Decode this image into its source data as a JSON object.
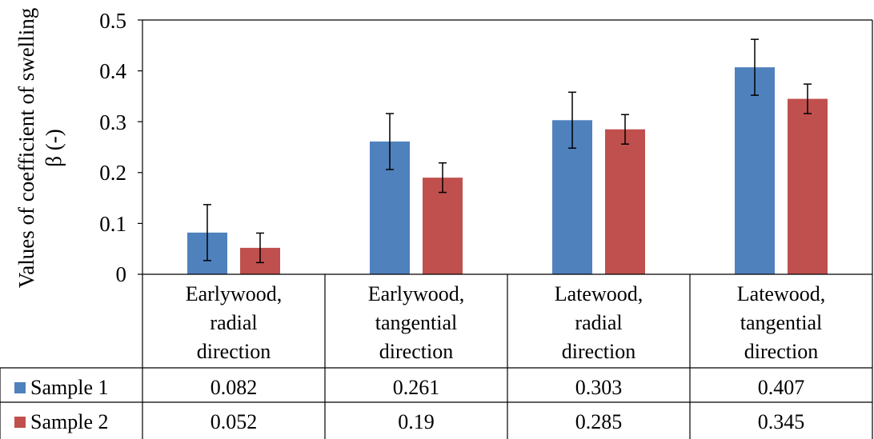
{
  "chart_data": {
    "type": "bar",
    "ylabel_line1": "Values of coefficient of swelling",
    "ylabel_line2": "β (-)",
    "ylim": [
      0,
      0.5
    ],
    "yticks": [
      "0",
      "0.1",
      "0.2",
      "0.3",
      "0.4",
      "0.5"
    ],
    "ytick_values": [
      0,
      0.1,
      0.2,
      0.3,
      0.4,
      0.5
    ],
    "categories": [
      {
        "line1": "Earlywood,",
        "line2": "radial",
        "line3": "direction"
      },
      {
        "line1": "Earlywood,",
        "line2": "tangential",
        "line3": "direction"
      },
      {
        "line1": "Latewood,",
        "line2": "radial",
        "line3": "direction"
      },
      {
        "line1": "Latewood,",
        "line2": "tangential",
        "line3": "direction"
      }
    ],
    "series": [
      {
        "name": "Sample 1",
        "color": "#4f81bd",
        "values": [
          0.082,
          0.261,
          0.303,
          0.407
        ],
        "labels": [
          "0.082",
          "0.261",
          "0.303",
          "0.407"
        ],
        "error": [
          0.055,
          0.055,
          0.055,
          0.055
        ]
      },
      {
        "name": "Sample 2",
        "color": "#c0504d",
        "values": [
          0.052,
          0.19,
          0.285,
          0.345
        ],
        "labels": [
          "0.052",
          "0.19",
          "0.285",
          "0.345"
        ],
        "error": [
          0.029,
          0.029,
          0.029,
          0.029
        ]
      }
    ],
    "grid": false,
    "legend": "data-table"
  }
}
